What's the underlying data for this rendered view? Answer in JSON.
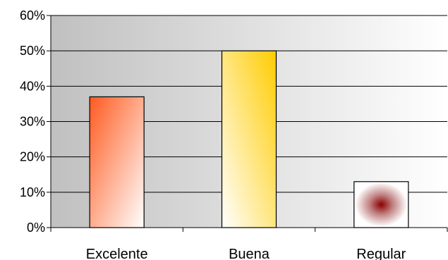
{
  "chart_data": {
    "type": "bar",
    "categories": [
      "Excelente",
      "Buena",
      "Regular"
    ],
    "values": [
      0.37,
      0.5,
      0.13
    ],
    "ylim": [
      0,
      0.6
    ],
    "y_ticks": [
      0,
      0.1,
      0.2,
      0.3,
      0.4,
      0.5,
      0.6
    ],
    "y_tick_labels": [
      "0%",
      "10%",
      "20%",
      "30%",
      "40%",
      "50%",
      "60%"
    ],
    "title": "",
    "xlabel": "",
    "ylabel": "",
    "grid": true,
    "legend": "none",
    "plot_background": "gradient gray to white",
    "bar_fills": [
      "orange-red gradient",
      "yellow-gold gradient",
      "dark red concentric squares"
    ],
    "colors": {
      "excelente_dark": "#ff5a1f",
      "buena_dark": "#ffcc00",
      "regular_center": "#8b0000",
      "plot_bg_left": "#c0c0c0",
      "plot_bg_right": "#ffffff"
    }
  }
}
